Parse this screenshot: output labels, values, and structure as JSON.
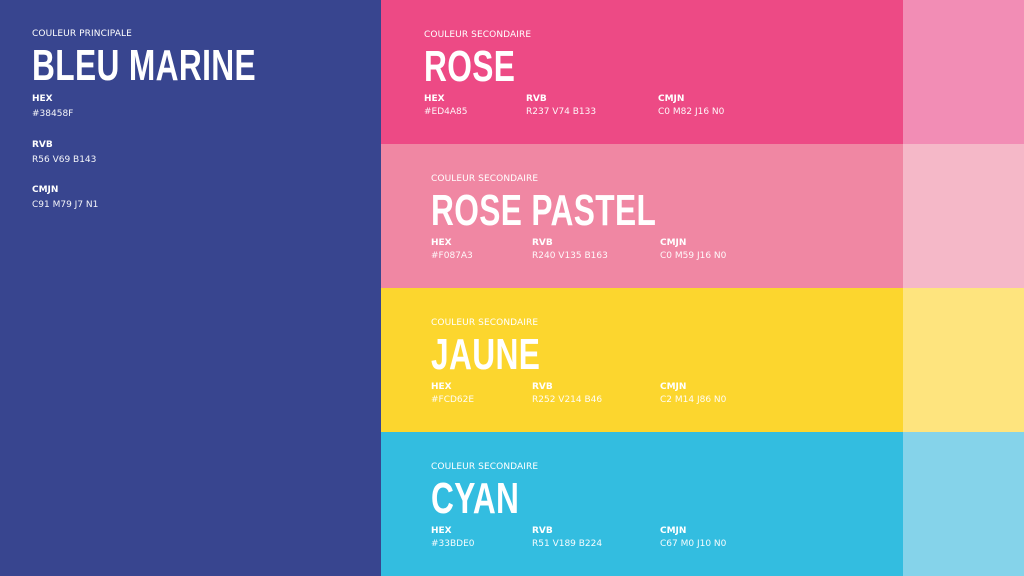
{
  "primary": {
    "label": "COULEUR PRINCIPALE",
    "name": "BLEU MARINE",
    "hex_label": "HEX",
    "hex": "#38458F",
    "rvb_label": "RVB",
    "rvb": "R56 V69 B143",
    "cmjn_label": "CMJN",
    "cmjn": "C91 M79 J7 N1",
    "color": "#38458F"
  },
  "secondary": [
    {
      "label": "COULEUR SECONDAIRE",
      "name": "ROSE",
      "hex_label": "HEX",
      "hex": "#ED4A85",
      "rvb_label": "RVB",
      "rvb": "R237 V74 B133",
      "cmjn_label": "CMJN",
      "cmjn": "C0 M82 J16 N0",
      "color": "#ED4A85",
      "tint": "#F28DB5"
    },
    {
      "label": "COULEUR SECONDAIRE",
      "name": "ROSE PASTEL",
      "hex_label": "HEX",
      "hex": "#F087A3",
      "rvb_label": "RVB",
      "rvb": "R240 V135 B163",
      "cmjn_label": "CMJN",
      "cmjn": "C0 M59 J16 N0",
      "color": "#F087A3",
      "tint": "#F5B8C8"
    },
    {
      "label": "COULEUR SECONDAIRE",
      "name": "JAUNE",
      "hex_label": "HEX",
      "hex": "#FCD62E",
      "rvb_label": "RVB",
      "rvb": "R252 V214 B46",
      "cmjn_label": "CMJN",
      "cmjn": "C2 M14 J86 N0",
      "color": "#FCD62E",
      "tint": "#FEE47E"
    },
    {
      "label": "COULEUR SECONDAIRE",
      "name": "CYAN",
      "hex_label": "HEX",
      "hex": "#33BDE0",
      "rvb_label": "RVB",
      "rvb": "R51 V189 B224",
      "cmjn_label": "CMJN",
      "cmjn": "C67 M0 J10 N0",
      "color": "#33BDE0",
      "tint": "#85D3EA"
    }
  ]
}
